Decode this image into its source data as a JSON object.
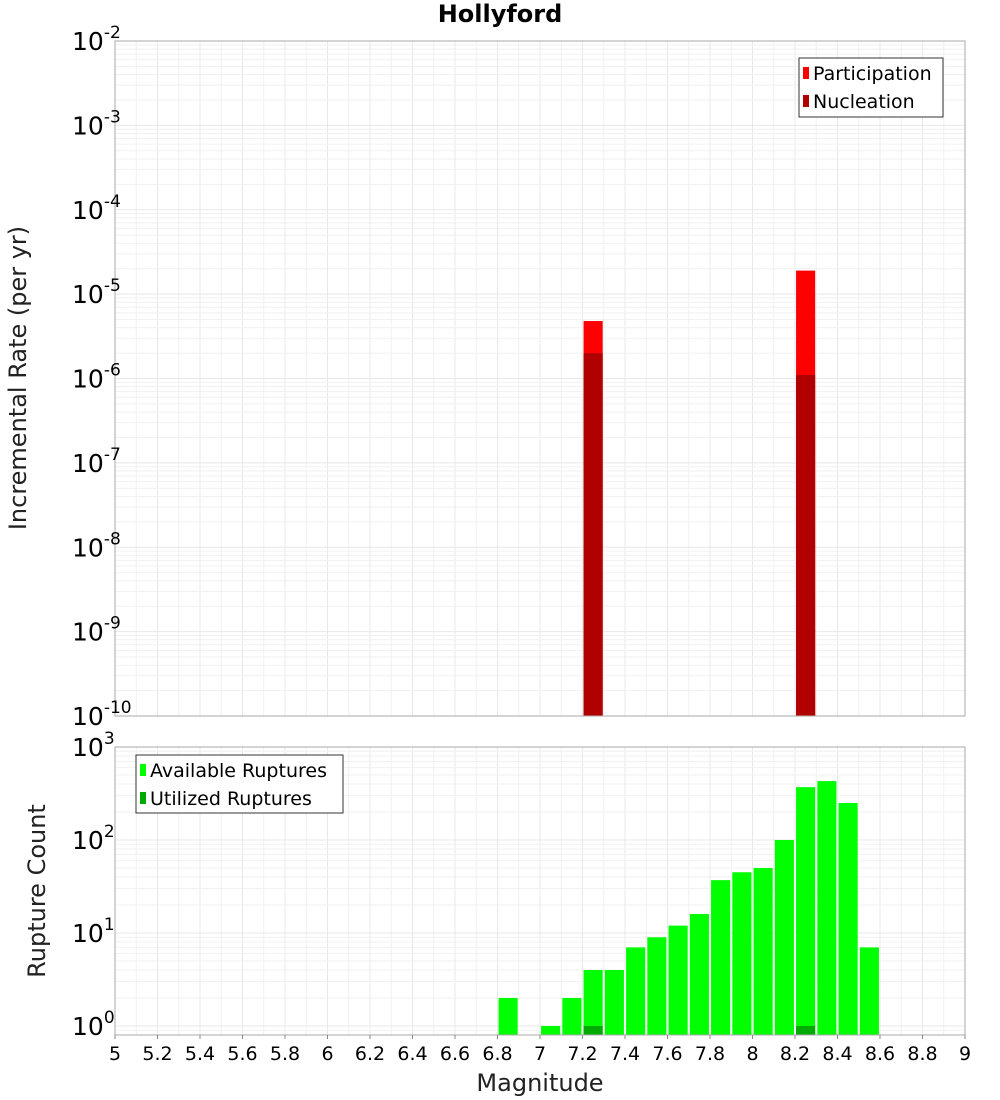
{
  "chart_data": [
    {
      "type": "bar",
      "title": "Hollyford",
      "ylabel": "Incremental Rate (per yr)",
      "xlim": [
        5,
        9
      ],
      "ylog": true,
      "ylim": [
        1e-10,
        0.01
      ],
      "yticks": [
        {
          "base": "10",
          "exp": "-2",
          "value": 0.01
        },
        {
          "base": "10",
          "exp": "-3",
          "value": 0.001
        },
        {
          "base": "10",
          "exp": "-4",
          "value": 0.0001
        },
        {
          "base": "10",
          "exp": "-5",
          "value": 1e-05
        },
        {
          "base": "10",
          "exp": "-6",
          "value": 1e-06
        },
        {
          "base": "10",
          "exp": "-7",
          "value": 1e-07
        },
        {
          "base": "10",
          "exp": "-8",
          "value": 1e-08
        },
        {
          "base": "10",
          "exp": "-9",
          "value": 1e-09
        },
        {
          "base": "10",
          "exp": "-10",
          "value": 1e-10
        }
      ],
      "legend_position": "top-right",
      "series": [
        {
          "name": "Participation",
          "color": "#ff0000",
          "points": [
            {
              "x": 7.25,
              "y": 4.8e-06
            },
            {
              "x": 8.25,
              "y": 1.9e-05
            }
          ]
        },
        {
          "name": "Nucleation",
          "color": "#b00000",
          "points": [
            {
              "x": 7.25,
              "y": 2e-06
            },
            {
              "x": 8.25,
              "y": 1.1e-06
            }
          ]
        }
      ]
    },
    {
      "type": "bar",
      "ylabel": "Rupture Count",
      "xlabel": "Magnitude",
      "xlim": [
        5,
        9
      ],
      "xticks": [
        "5",
        "5.2",
        "5.4",
        "5.6",
        "5.8",
        "6",
        "6.2",
        "6.4",
        "6.6",
        "6.8",
        "7",
        "7.2",
        "7.4",
        "7.6",
        "7.8",
        "8",
        "8.2",
        "8.4",
        "8.6",
        "8.8",
        "9"
      ],
      "ylog": true,
      "ylim": [
        0.8,
        1000
      ],
      "yticks": [
        {
          "base": "10",
          "exp": "3",
          "value": 1000
        },
        {
          "base": "10",
          "exp": "2",
          "value": 100
        },
        {
          "base": "10",
          "exp": "1",
          "value": 10
        },
        {
          "base": "10",
          "exp": "0",
          "value": 1
        }
      ],
      "legend_position": "top-left",
      "series": [
        {
          "name": "Available Ruptures",
          "color": "#00ff00",
          "points": [
            {
              "x": 6.85,
              "y": 2
            },
            {
              "x": 7.05,
              "y": 1
            },
            {
              "x": 7.15,
              "y": 2
            },
            {
              "x": 7.25,
              "y": 4
            },
            {
              "x": 7.35,
              "y": 4
            },
            {
              "x": 7.45,
              "y": 7
            },
            {
              "x": 7.55,
              "y": 9
            },
            {
              "x": 7.65,
              "y": 12
            },
            {
              "x": 7.75,
              "y": 16
            },
            {
              "x": 7.85,
              "y": 37
            },
            {
              "x": 7.95,
              "y": 45
            },
            {
              "x": 8.05,
              "y": 50
            },
            {
              "x": 8.15,
              "y": 100
            },
            {
              "x": 8.25,
              "y": 370
            },
            {
              "x": 8.35,
              "y": 430
            },
            {
              "x": 8.45,
              "y": 250
            },
            {
              "x": 8.55,
              "y": 7
            }
          ]
        },
        {
          "name": "Utilized Ruptures",
          "color": "#00aa00",
          "points": [
            {
              "x": 7.25,
              "y": 1
            },
            {
              "x": 8.25,
              "y": 1
            }
          ]
        }
      ]
    }
  ]
}
